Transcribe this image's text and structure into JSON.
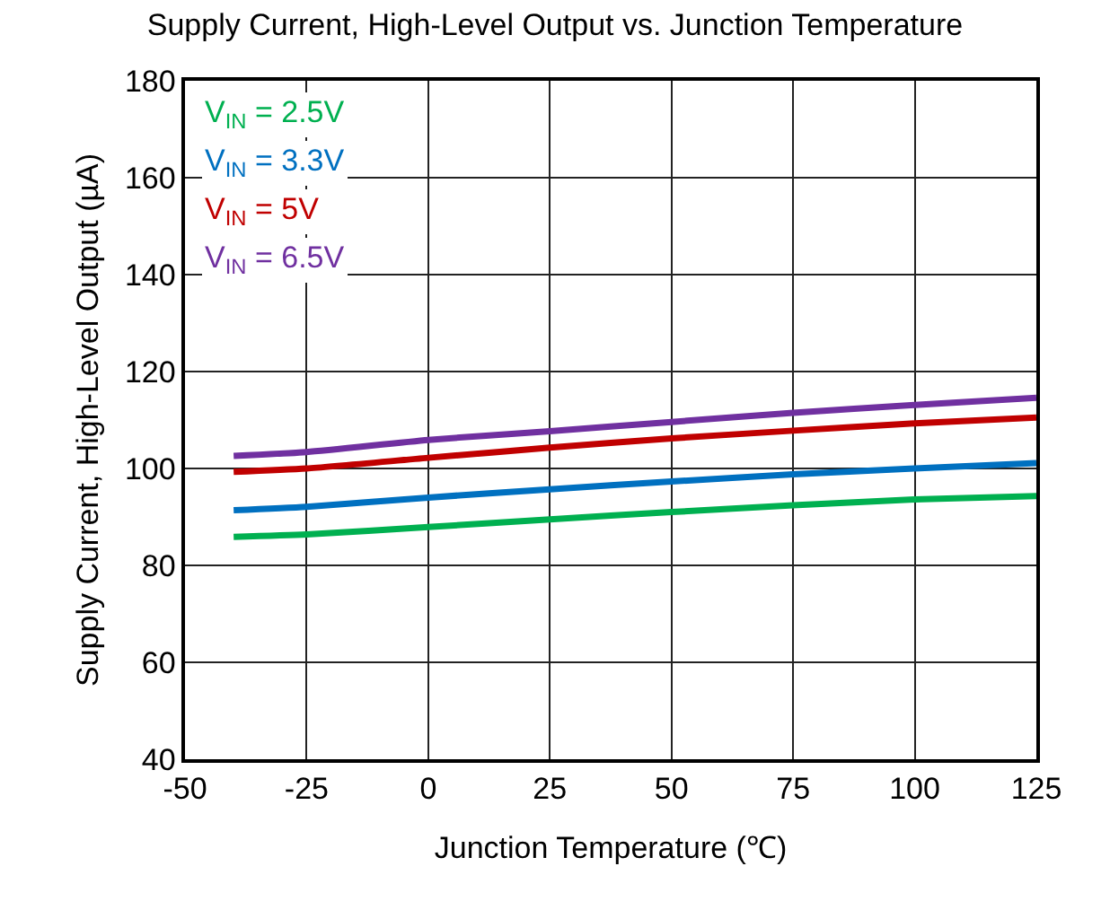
{
  "chart_data": {
    "type": "line",
    "title": "Supply Current, High-Level Output vs. Junction Temperature",
    "xlabel": "Junction Temperature (℃)",
    "ylabel": "Supply Current, High-Level Output (µA)",
    "x": [
      -40,
      -25,
      0,
      25,
      50,
      75,
      100,
      125
    ],
    "series": [
      {
        "name": "V$_{IN}$ = 2.5V",
        "color": "#00b050",
        "values": [
          85.9,
          86.4,
          87.9,
          89.5,
          91,
          92.4,
          93.6,
          94.3
        ]
      },
      {
        "name": "V$_{IN}$ = 3.3V",
        "color": "#0070c0",
        "values": [
          91.4,
          92.1,
          94,
          95.7,
          97.3,
          98.8,
          100,
          101.1
        ]
      },
      {
        "name": "V$_{IN}$ = 5V",
        "color": "#c00000",
        "values": [
          99.3,
          100,
          102.2,
          104.3,
          106.2,
          107.8,
          109.3,
          110.5
        ]
      },
      {
        "name": "V$_{IN}$ = 6.5V",
        "color": "#7030a0",
        "values": [
          102.6,
          103.4,
          105.9,
          107.7,
          109.6,
          111.5,
          113.1,
          114.6
        ]
      }
    ],
    "xlim": [
      -50,
      125
    ],
    "xticks": [
      -50,
      -25,
      0,
      25,
      50,
      75,
      100,
      125
    ],
    "ylim": [
      40,
      180
    ],
    "yticks": [
      40,
      60,
      80,
      100,
      120,
      140,
      160,
      180
    ],
    "grid": true,
    "legend": "top left",
    "marker": "none",
    "line_style": "solid"
  }
}
